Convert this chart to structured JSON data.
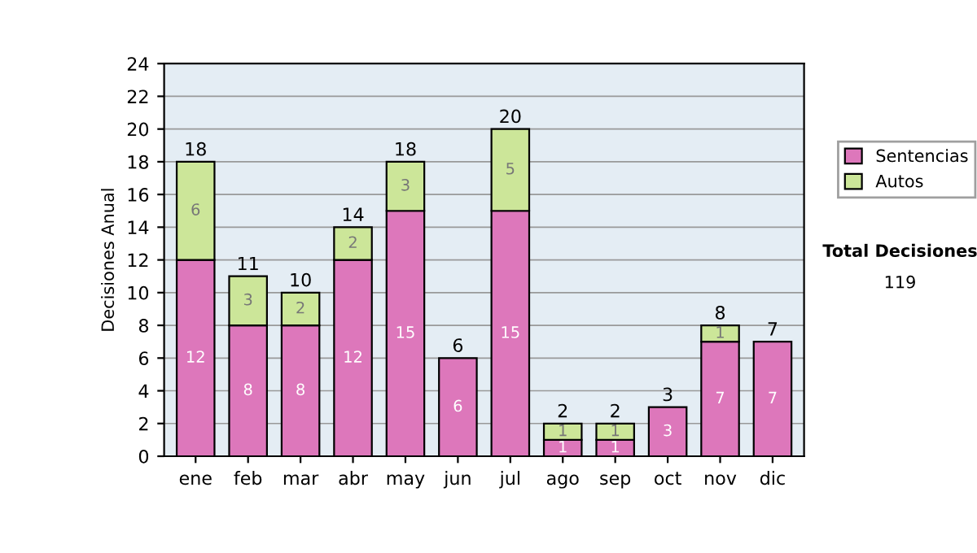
{
  "chart_data": {
    "type": "bar",
    "stacked": true,
    "ylabel": "Decisiones Anual",
    "categories": [
      "ene",
      "feb",
      "mar",
      "abr",
      "may",
      "jun",
      "jul",
      "ago",
      "sep",
      "oct",
      "nov",
      "dic"
    ],
    "series": [
      {
        "name": "Sentencias",
        "color": "#dd77bb",
        "values": [
          12,
          8,
          8,
          12,
          15,
          6,
          15,
          1,
          1,
          3,
          7,
          7
        ],
        "value_labels": [
          "12",
          "8",
          "8",
          "12",
          "15",
          "6",
          "15",
          "1",
          "1",
          "3",
          "7",
          "7"
        ]
      },
      {
        "name": "Autos",
        "color": "#cce699",
        "values": [
          6,
          3,
          2,
          2,
          3,
          0,
          5,
          1,
          1,
          0,
          1,
          0
        ],
        "value_labels": [
          "6",
          "3",
          "2",
          "2",
          "3",
          null,
          "5",
          "1",
          "1",
          null,
          "1",
          null
        ]
      }
    ],
    "totals": [
      "18",
      "11",
      "10",
      "14",
      "18",
      "6",
      "20",
      "2",
      "2",
      "3",
      "8",
      "7"
    ],
    "ylim": [
      0,
      24
    ],
    "yticks": [
      0,
      2,
      4,
      6,
      8,
      10,
      12,
      14,
      16,
      18,
      20,
      22,
      24
    ],
    "grid": "y",
    "legend": "right",
    "annotations": [
      "Total Decisiones",
      "119"
    ]
  }
}
